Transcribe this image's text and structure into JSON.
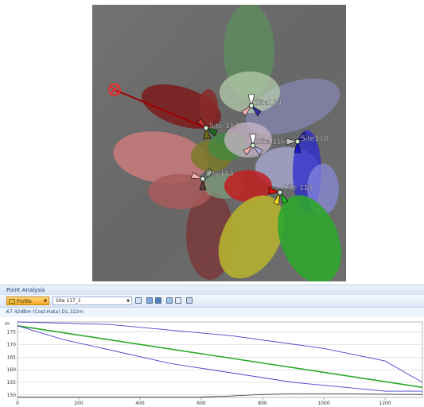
{
  "map": {
    "sites": [
      {
        "name": "Site 117",
        "label": "Site 117"
      },
      {
        "name": "Site 114",
        "label": "Site114"
      },
      {
        "name": "Site 116",
        "label": "Site 116"
      },
      {
        "name": "Site 118",
        "label": "Site118"
      },
      {
        "name": "Site 113",
        "label": "Site113"
      },
      {
        "name": "Site 115",
        "label": "Site 115"
      }
    ],
    "colors": {
      "background": "#6f6f6f",
      "profile_line": "#a00000",
      "marker": "#e03030"
    }
  },
  "point_analysis": {
    "title": "Point Analysis",
    "profile_button": "Profile",
    "site_select": "Site 117_1",
    "info": "-67.42dBm (Cost-Hata) D1,322m",
    "y_unit": "m",
    "toolbar_icons": [
      "chart-icon",
      "map-icon",
      "layers-icon",
      "export-icon",
      "copy-icon",
      "print-icon"
    ]
  },
  "chart_data": {
    "type": "line",
    "xlabel": "",
    "ylabel": "m",
    "xlim": [
      0,
      1322
    ],
    "ylim": [
      149,
      179
    ],
    "x_ticks": [
      0,
      200,
      400,
      600,
      800,
      1000,
      1200
    ],
    "y_ticks": [
      150,
      155,
      160,
      165,
      170,
      175
    ],
    "series": [
      {
        "color": "#2aa82a",
        "x": [
          0,
          1322
        ],
        "y": [
          177.5,
          153
        ]
      },
      {
        "color": "#4646c8",
        "x": [
          0,
          300,
          700,
          1000,
          1200,
          1322
        ],
        "y": [
          179,
          178,
          173.5,
          168.5,
          163.5,
          155
        ]
      },
      {
        "color": "#4646c8",
        "x": [
          0,
          150,
          500,
          900,
          1200,
          1322
        ],
        "y": [
          177.5,
          172,
          162.5,
          155,
          151.5,
          151.5
        ]
      },
      {
        "color": "#444444",
        "x": [
          0,
          600,
          680,
          800,
          900,
          1100,
          1322
        ],
        "y": [
          149.2,
          149.2,
          149.5,
          150.2,
          150.5,
          150.4,
          150.2
        ]
      }
    ]
  }
}
